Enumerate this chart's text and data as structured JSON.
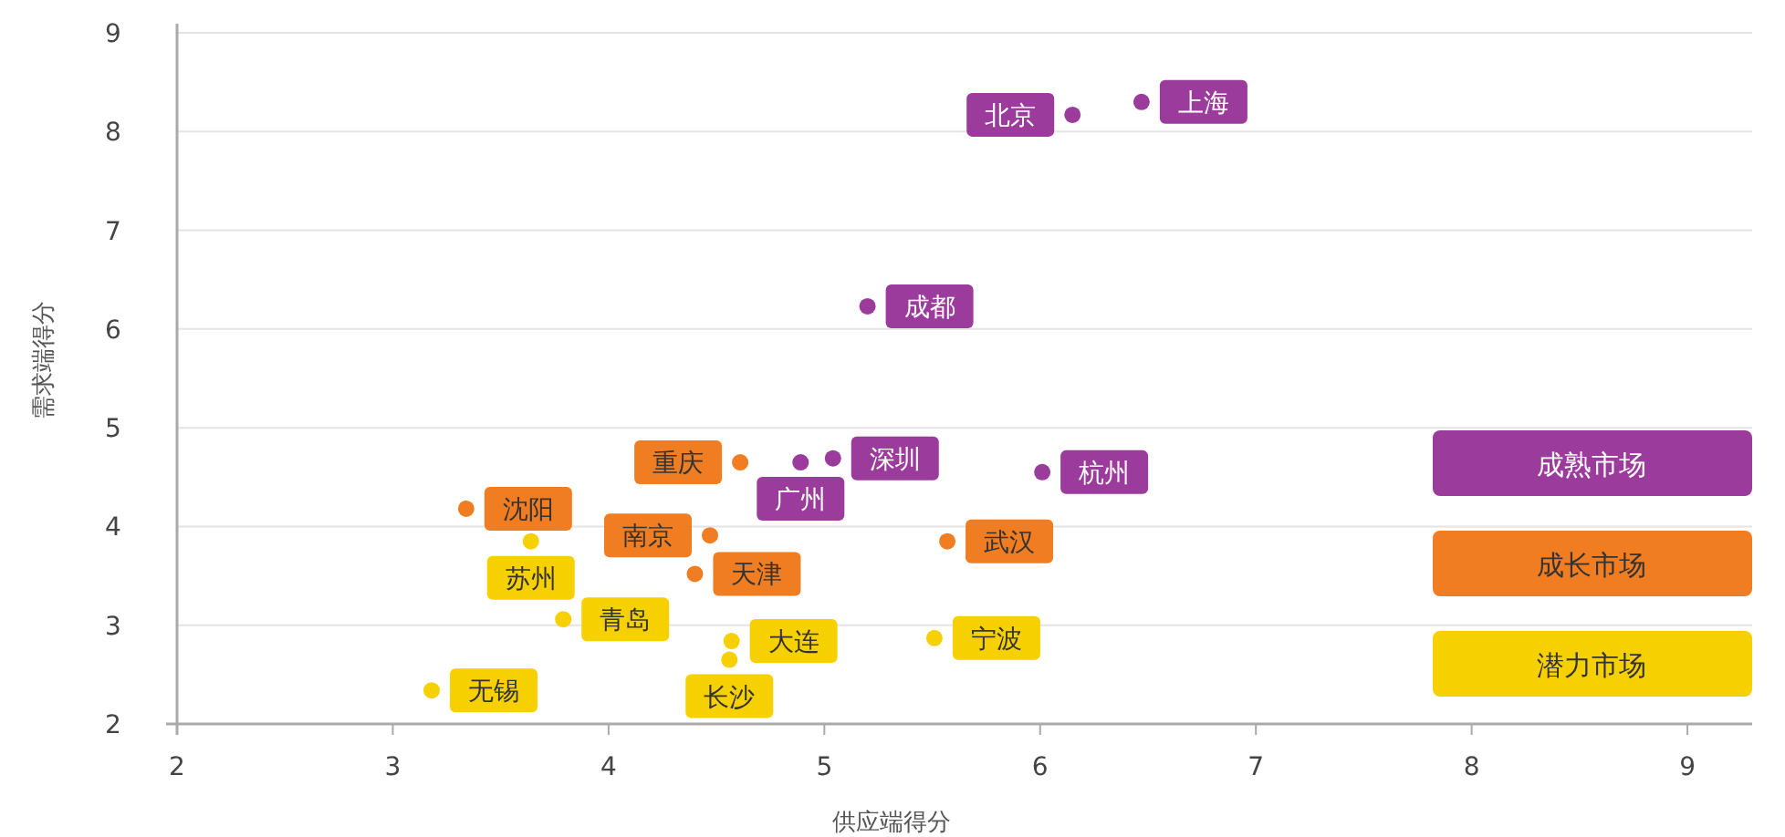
{
  "chart_data": {
    "type": "scatter",
    "xlabel": "供应端得分",
    "ylabel": "需求端得分",
    "xlim": [
      2,
      9.3
    ],
    "xticks": [
      2,
      3,
      4,
      5,
      6,
      7,
      8,
      9
    ],
    "ylim": [
      2,
      9
    ],
    "yticks": [
      2,
      3,
      4,
      5,
      6,
      7,
      8,
      9
    ],
    "grid": "y",
    "legend": "right",
    "marker": "circle",
    "series": [
      {
        "name": "成熟市场",
        "color": "#9b3b9b",
        "x": [
          6.47,
          6.15,
          5.2,
          4.89,
          5.04,
          6.01
        ],
        "values": [
          8.3,
          8.17,
          6.23,
          4.65,
          4.69,
          4.55
        ]
      },
      {
        "name": "成长市场",
        "color": "#f07d22",
        "x": [
          3.34,
          4.61,
          4.47,
          4.4,
          5.57
        ],
        "values": [
          4.18,
          4.65,
          3.91,
          3.52,
          3.85
        ]
      },
      {
        "name": "潜力市场",
        "color": "#f7d000",
        "x": [
          3.64,
          3.79,
          4.57,
          4.56,
          5.51,
          3.18
        ],
        "values": [
          3.85,
          3.06,
          2.84,
          2.65,
          2.87,
          2.34
        ]
      }
    ],
    "annotations": [
      {
        "text": "上海",
        "x": 6.47,
        "y": 8.3
      },
      {
        "text": "北京",
        "x": 6.15,
        "y": 8.17
      },
      {
        "text": "成都",
        "x": 5.2,
        "y": 6.23
      },
      {
        "text": "广州",
        "x": 4.89,
        "y": 4.65
      },
      {
        "text": "深圳",
        "x": 5.04,
        "y": 4.69
      },
      {
        "text": "杭州",
        "x": 6.01,
        "y": 4.55
      },
      {
        "text": "沈阳",
        "x": 3.34,
        "y": 4.18
      },
      {
        "text": "重庆",
        "x": 4.61,
        "y": 4.65
      },
      {
        "text": "南京",
        "x": 4.47,
        "y": 3.91
      },
      {
        "text": "天津",
        "x": 4.4,
        "y": 3.52
      },
      {
        "text": "武汉",
        "x": 5.57,
        "y": 3.85
      },
      {
        "text": "苏州",
        "x": 3.64,
        "y": 3.85
      },
      {
        "text": "青岛",
        "x": 3.79,
        "y": 3.06
      },
      {
        "text": "大连",
        "x": 4.57,
        "y": 2.84
      },
      {
        "text": "长沙",
        "x": 4.56,
        "y": 2.65
      },
      {
        "text": "宁波",
        "x": 5.51,
        "y": 2.87
      },
      {
        "text": "无锡",
        "x": 3.18,
        "y": 2.34
      }
    ]
  }
}
